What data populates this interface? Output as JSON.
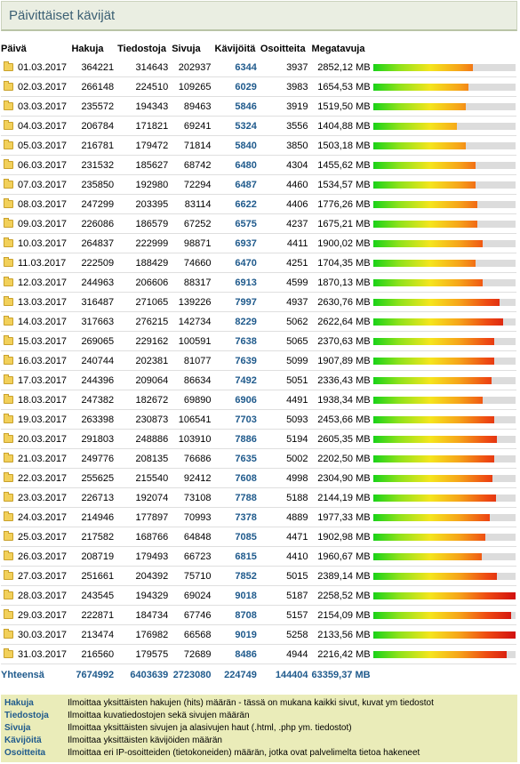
{
  "title": "Päivittäiset kävijät",
  "headers": {
    "date": "Päivä",
    "hakuja": "Hakuja",
    "tiedostoja": "Tiedostoja",
    "sivuja": "Sivuja",
    "kavijoita": "Kävijöitä",
    "osoitteita": "Osoitteita",
    "megatavuja": "Megatavuja"
  },
  "rows": [
    {
      "date": "01.03.2017",
      "hakuja": "364221",
      "tiedostoja": "314643",
      "sivuja": "202937",
      "kavijoita": "6344",
      "osoitteita": "3937",
      "megatavuja": "2852,12 MB",
      "bar": 0.7
    },
    {
      "date": "02.03.2017",
      "hakuja": "266148",
      "tiedostoja": "224510",
      "sivuja": "109265",
      "kavijoita": "6029",
      "osoitteita": "3983",
      "megatavuja": "1654,53 MB",
      "bar": 0.67
    },
    {
      "date": "03.03.2017",
      "hakuja": "235572",
      "tiedostoja": "194343",
      "sivuja": "89463",
      "kavijoita": "5846",
      "osoitteita": "3919",
      "megatavuja": "1519,50 MB",
      "bar": 0.65
    },
    {
      "date": "04.03.2017",
      "hakuja": "206784",
      "tiedostoja": "171821",
      "sivuja": "69241",
      "kavijoita": "5324",
      "osoitteita": "3556",
      "megatavuja": "1404,88 MB",
      "bar": 0.59
    },
    {
      "date": "05.03.2017",
      "hakuja": "216781",
      "tiedostoja": "179472",
      "sivuja": "71814",
      "kavijoita": "5840",
      "osoitteita": "3850",
      "megatavuja": "1503,18 MB",
      "bar": 0.65
    },
    {
      "date": "06.03.2017",
      "hakuja": "231532",
      "tiedostoja": "185627",
      "sivuja": "68742",
      "kavijoita": "6480",
      "osoitteita": "4304",
      "megatavuja": "1455,62 MB",
      "bar": 0.72
    },
    {
      "date": "07.03.2017",
      "hakuja": "235850",
      "tiedostoja": "192980",
      "sivuja": "72294",
      "kavijoita": "6487",
      "osoitteita": "4460",
      "megatavuja": "1534,57 MB",
      "bar": 0.72
    },
    {
      "date": "08.03.2017",
      "hakuja": "247299",
      "tiedostoja": "203395",
      "sivuja": "83114",
      "kavijoita": "6622",
      "osoitteita": "4406",
      "megatavuja": "1776,26 MB",
      "bar": 0.73
    },
    {
      "date": "09.03.2017",
      "hakuja": "226086",
      "tiedostoja": "186579",
      "sivuja": "67252",
      "kavijoita": "6575",
      "osoitteita": "4237",
      "megatavuja": "1675,21 MB",
      "bar": 0.73
    },
    {
      "date": "10.03.2017",
      "hakuja": "264837",
      "tiedostoja": "222999",
      "sivuja": "98871",
      "kavijoita": "6937",
      "osoitteita": "4411",
      "megatavuja": "1900,02 MB",
      "bar": 0.77
    },
    {
      "date": "11.03.2017",
      "hakuja": "222509",
      "tiedostoja": "188429",
      "sivuja": "74660",
      "kavijoita": "6470",
      "osoitteita": "4251",
      "megatavuja": "1704,35 MB",
      "bar": 0.72
    },
    {
      "date": "12.03.2017",
      "hakuja": "244963",
      "tiedostoja": "206606",
      "sivuja": "88317",
      "kavijoita": "6913",
      "osoitteita": "4599",
      "megatavuja": "1870,13 MB",
      "bar": 0.77
    },
    {
      "date": "13.03.2017",
      "hakuja": "316487",
      "tiedostoja": "271065",
      "sivuja": "139226",
      "kavijoita": "7997",
      "osoitteita": "4937",
      "megatavuja": "2630,76 MB",
      "bar": 0.89
    },
    {
      "date": "14.03.2017",
      "hakuja": "317663",
      "tiedostoja": "276215",
      "sivuja": "142734",
      "kavijoita": "8229",
      "osoitteita": "5062",
      "megatavuja": "2622,64 MB",
      "bar": 0.91
    },
    {
      "date": "15.03.2017",
      "hakuja": "269065",
      "tiedostoja": "229162",
      "sivuja": "100591",
      "kavijoita": "7638",
      "osoitteita": "5065",
      "megatavuja": "2370,63 MB",
      "bar": 0.85
    },
    {
      "date": "16.03.2017",
      "hakuja": "240744",
      "tiedostoja": "202381",
      "sivuja": "81077",
      "kavijoita": "7639",
      "osoitteita": "5099",
      "megatavuja": "1907,89 MB",
      "bar": 0.85
    },
    {
      "date": "17.03.2017",
      "hakuja": "244396",
      "tiedostoja": "209064",
      "sivuja": "86634",
      "kavijoita": "7492",
      "osoitteita": "5051",
      "megatavuja": "2336,43 MB",
      "bar": 0.83
    },
    {
      "date": "18.03.2017",
      "hakuja": "247382",
      "tiedostoja": "182672",
      "sivuja": "69890",
      "kavijoita": "6906",
      "osoitteita": "4491",
      "megatavuja": "1938,34 MB",
      "bar": 0.77
    },
    {
      "date": "19.03.2017",
      "hakuja": "263398",
      "tiedostoja": "230873",
      "sivuja": "106541",
      "kavijoita": "7703",
      "osoitteita": "5093",
      "megatavuja": "2453,66 MB",
      "bar": 0.85
    },
    {
      "date": "20.03.2017",
      "hakuja": "291803",
      "tiedostoja": "248886",
      "sivuja": "103910",
      "kavijoita": "7886",
      "osoitteita": "5194",
      "megatavuja": "2605,35 MB",
      "bar": 0.87
    },
    {
      "date": "21.03.2017",
      "hakuja": "249776",
      "tiedostoja": "208135",
      "sivuja": "76686",
      "kavijoita": "7635",
      "osoitteita": "5002",
      "megatavuja": "2202,50 MB",
      "bar": 0.85
    },
    {
      "date": "22.03.2017",
      "hakuja": "255625",
      "tiedostoja": "215540",
      "sivuja": "92412",
      "kavijoita": "7608",
      "osoitteita": "4998",
      "megatavuja": "2304,90 MB",
      "bar": 0.84
    },
    {
      "date": "23.03.2017",
      "hakuja": "226713",
      "tiedostoja": "192074",
      "sivuja": "73108",
      "kavijoita": "7788",
      "osoitteita": "5188",
      "megatavuja": "2144,19 MB",
      "bar": 0.86
    },
    {
      "date": "24.03.2017",
      "hakuja": "214946",
      "tiedostoja": "177897",
      "sivuja": "70993",
      "kavijoita": "7378",
      "osoitteita": "4889",
      "megatavuja": "1977,33 MB",
      "bar": 0.82
    },
    {
      "date": "25.03.2017",
      "hakuja": "217582",
      "tiedostoja": "168766",
      "sivuja": "64848",
      "kavijoita": "7085",
      "osoitteita": "4471",
      "megatavuja": "1902,98 MB",
      "bar": 0.79
    },
    {
      "date": "26.03.2017",
      "hakuja": "208719",
      "tiedostoja": "179493",
      "sivuja": "66723",
      "kavijoita": "6815",
      "osoitteita": "4410",
      "megatavuja": "1960,67 MB",
      "bar": 0.76
    },
    {
      "date": "27.03.2017",
      "hakuja": "251661",
      "tiedostoja": "204392",
      "sivuja": "75710",
      "kavijoita": "7852",
      "osoitteita": "5015",
      "megatavuja": "2389,14 MB",
      "bar": 0.87
    },
    {
      "date": "28.03.2017",
      "hakuja": "243545",
      "tiedostoja": "194329",
      "sivuja": "69024",
      "kavijoita": "9018",
      "osoitteita": "5187",
      "megatavuja": "2258,52 MB",
      "bar": 1.0
    },
    {
      "date": "29.03.2017",
      "hakuja": "222871",
      "tiedostoja": "184734",
      "sivuja": "67746",
      "kavijoita": "8708",
      "osoitteita": "5157",
      "megatavuja": "2154,09 MB",
      "bar": 0.97
    },
    {
      "date": "30.03.2017",
      "hakuja": "213474",
      "tiedostoja": "176982",
      "sivuja": "66568",
      "kavijoita": "9019",
      "osoitteita": "5258",
      "megatavuja": "2133,56 MB",
      "bar": 1.0
    },
    {
      "date": "31.03.2017",
      "hakuja": "216560",
      "tiedostoja": "179575",
      "sivuja": "72689",
      "kavijoita": "8486",
      "osoitteita": "4944",
      "megatavuja": "2216,42 MB",
      "bar": 0.94
    }
  ],
  "total": {
    "label": "Yhteensä",
    "hakuja": "7674992",
    "tiedostoja": "6403639",
    "sivuja": "2723080",
    "kavijoita": "224749",
    "osoitteita": "144404",
    "megatavuja": "63359,37 MB"
  },
  "legend": [
    {
      "key": "Hakuja",
      "text": "Ilmoittaa yksittäisten hakujen (hits) määrän - tässä on mukana kaikki sivut, kuvat ym tiedostot"
    },
    {
      "key": "Tiedostoja",
      "text": "Ilmoittaa kuvatiedostojen sekä sivujen määrän"
    },
    {
      "key": "Sivuja",
      "text": "Ilmoittaa yksittäisten sivujen ja alasivujen haut (.html, .php ym. tiedostot)"
    },
    {
      "key": "Kävijöitä",
      "text": "Ilmoittaa yksittäisten kävijöiden määrän"
    },
    {
      "key": "Osoitteita",
      "text": "Ilmoittaa eri IP-osoitteiden (tietokoneiden) määrän, jotka ovat palvelimelta tietoa hakeneet"
    }
  ]
}
